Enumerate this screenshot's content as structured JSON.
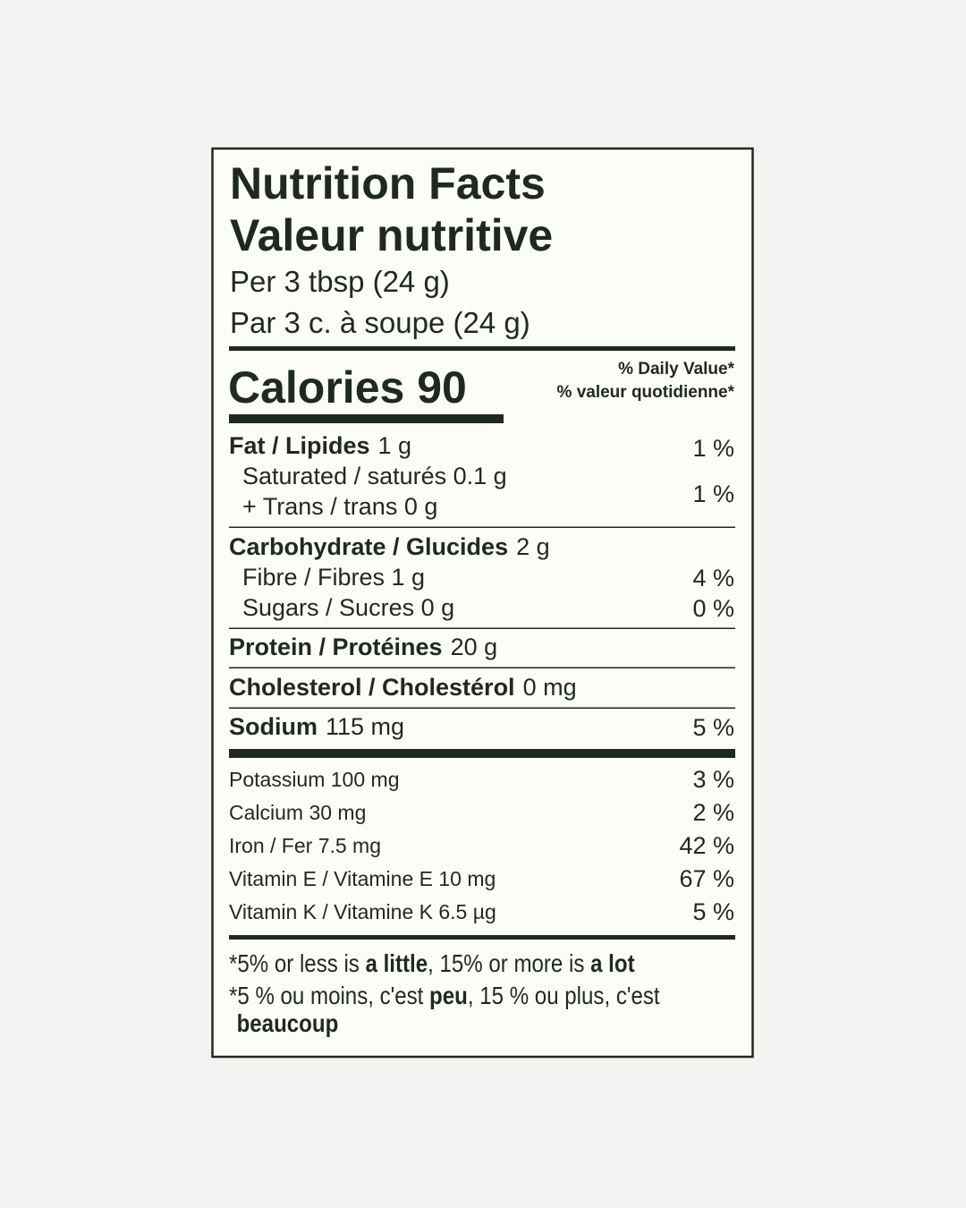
{
  "title": [
    "Nutrition Facts",
    "Valeur nutritive"
  ],
  "serving": [
    "Per 3 tbsp (24 g)",
    "Par 3 c. à soupe (24 g)"
  ],
  "calories": "Calories 90",
  "daily_value_header": [
    "% Daily Value*",
    "% valeur quotidienne*"
  ],
  "fat": {
    "name": "Fat / Lipides",
    "amount": "1 g",
    "dv": "1 %"
  },
  "saturated_trans": {
    "lines": [
      "Saturated / saturés 0.1 g",
      "+ Trans / trans 0 g"
    ],
    "dv": "1 %"
  },
  "carbohydrate": {
    "name": "Carbohydrate / Glucides",
    "amount": "2 g"
  },
  "fibre": {
    "text": "Fibre / Fibres 1 g",
    "dv": "4 %"
  },
  "sugars": {
    "text": "Sugars / Sucres 0 g",
    "dv": "0 %"
  },
  "protein": {
    "name": "Protein / Protéines",
    "amount": "20 g"
  },
  "cholesterol": {
    "name": "Cholesterol / Cholestérol",
    "amount": "0 mg"
  },
  "sodium": {
    "name": "Sodium",
    "amount": "115 mg",
    "dv": "5 %"
  },
  "minerals": [
    {
      "text": "Potassium 100 mg",
      "dv": "3 %"
    },
    {
      "text": "Calcium 30 mg",
      "dv": "2 %"
    },
    {
      "text": "Iron / Fer 7.5 mg",
      "dv": "42 %"
    },
    {
      "text": "Vitamin E / Vitamine E 10 mg",
      "dv": "67 %"
    },
    {
      "text": "Vitamin K / Vitamine K 6.5 µg",
      "dv": "5 %"
    }
  ],
  "footnote": {
    "en": [
      "*5% or less is ",
      "a little",
      ", 15% or more is ",
      "a lot"
    ],
    "fr": [
      "*5 % ou moins, c'est ",
      "peu",
      ", 15 % ou plus, c'est",
      "beaucoup"
    ]
  }
}
